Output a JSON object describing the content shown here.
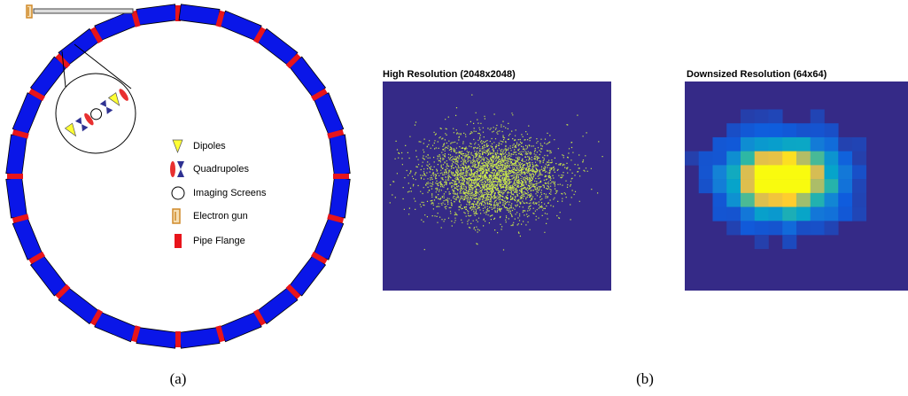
{
  "legend": {
    "items": [
      "Dipoles",
      "Quadrupoles",
      "Imaging Screens",
      "Electron gun",
      "Pipe Flange"
    ]
  },
  "images": {
    "items": [
      {
        "title": "High Resolution (2048x2048)"
      },
      {
        "title": "Downsized Resolution (64x64)"
      }
    ]
  },
  "captions": {
    "items": [
      "(a)",
      "(b)"
    ]
  }
}
